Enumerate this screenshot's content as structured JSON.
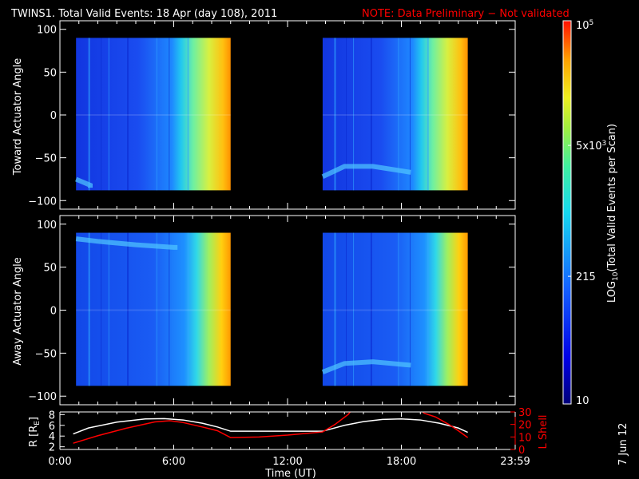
{
  "title": {
    "main": "TWINS1. Total Valid Events: 18 Apr (day 108), 2011",
    "note": "NOTE: Data Preliminary − Not validated"
  },
  "date_stamp": "7 Jun 12",
  "colors": {
    "background": "#000000",
    "foreground": "#ffffff",
    "note": "#ff0000",
    "r_line": "#ffffff",
    "lshell_line": "#ff0000"
  },
  "chart_data": [
    {
      "type": "heatmap",
      "panel": "top",
      "ylabel": "Toward Actuator Angle",
      "ylim": [
        -110,
        110
      ],
      "yticks": [
        "100",
        "50",
        "0",
        "−50",
        "−100"
      ],
      "ytick_values": [
        100,
        50,
        0,
        -50,
        -100
      ],
      "xlim_hours": [
        0,
        24
      ],
      "data_blocks": [
        {
          "start_hour": 0.85,
          "end_hour": 9.0,
          "angle_range": [
            -88,
            90
          ]
        },
        {
          "start_hour": 13.85,
          "end_hour": 21.5,
          "angle_range": [
            -88,
            90
          ]
        }
      ],
      "feature_line": {
        "segments": [
          [
            [
              0.85,
              -75
            ],
            [
              1.6,
              -82
            ],
            [
              1.6,
              -85
            ]
          ],
          [
            [
              13.85,
              -72
            ],
            [
              15.0,
              -60
            ],
            [
              16.5,
              -60
            ],
            [
              18.5,
              -67
            ]
          ]
        ]
      }
    },
    {
      "type": "heatmap",
      "panel": "middle",
      "ylabel": "Away Actuator Angle",
      "ylim": [
        -110,
        110
      ],
      "yticks": [
        "100",
        "50",
        "0",
        "−50",
        "−100"
      ],
      "ytick_values": [
        100,
        50,
        0,
        -50,
        -100
      ],
      "xlim_hours": [
        0,
        24
      ],
      "data_blocks": [
        {
          "start_hour": 0.85,
          "end_hour": 9.0,
          "angle_range": [
            -88,
            90
          ]
        },
        {
          "start_hour": 13.85,
          "end_hour": 21.5,
          "angle_range": [
            -88,
            90
          ]
        }
      ],
      "feature_line": {
        "segments": [
          [
            [
              0.85,
              83
            ],
            [
              2.0,
              80
            ],
            [
              4.0,
              76
            ],
            [
              6.0,
              73
            ],
            [
              6.2,
              73
            ]
          ],
          [
            [
              13.85,
              -72
            ],
            [
              15.0,
              -62
            ],
            [
              16.5,
              -60
            ],
            [
              18.5,
              -64
            ]
          ]
        ]
      }
    },
    {
      "type": "line",
      "panel": "bottom",
      "xlabel": "Time (UT)",
      "xticks": [
        "0:00",
        "6:00",
        "12:00",
        "18:00",
        "23:59"
      ],
      "xtick_values": [
        0,
        6,
        12,
        18,
        24
      ],
      "ylabel_left": "R [R",
      "ylabel_left_sub": "E",
      "ylabel_left_close": "]",
      "ylabel_right": "L Shell",
      "ylim_left": [
        1.5,
        8.5
      ],
      "yticks_left": [
        "8",
        "6",
        "4",
        "2"
      ],
      "ytick_values_left": [
        8,
        6,
        4,
        2
      ],
      "ylim_right": [
        0,
        30
      ],
      "yticks_right": [
        "30",
        "20",
        "10",
        "0"
      ],
      "ytick_values_right": [
        30,
        20,
        10,
        0
      ],
      "series": [
        {
          "axis": "left",
          "x": [
            0.7,
            1.5,
            3.0,
            4.5,
            5.5,
            6.5,
            7.5,
            8.3,
            9.0,
            10.0,
            11.0,
            12.0,
            13.0,
            13.85,
            15.0,
            16.0,
            17.0,
            18.0,
            19.0,
            20.0,
            21.0,
            21.5
          ],
          "y": [
            4.4,
            5.5,
            6.6,
            7.2,
            7.25,
            7.0,
            6.4,
            5.7,
            4.9,
            4.9,
            4.9,
            4.9,
            4.9,
            4.9,
            6.0,
            6.7,
            7.1,
            7.2,
            7.0,
            6.4,
            5.5,
            4.7
          ]
        },
        {
          "axis": "right",
          "segments": [
            {
              "x": [
                0.7,
                2.0,
                3.5,
                5.0,
                5.8,
                6.5,
                7.5,
                8.3,
                9.0,
                10.5,
                12.0,
                13.85,
                14.5,
                15.2,
                15.4
              ],
              "y": [
                5.0,
                11.0,
                17.0,
                22.0,
                23.0,
                21.5,
                18.0,
                15.0,
                9.5,
                10.0,
                11.5,
                14.0,
                20.0,
                28.0,
                32.0
              ]
            },
            {
              "x": [
                19.0,
                19.2,
                19.8,
                20.5,
                21.0,
                21.5
              ],
              "y": [
                32.0,
                29.0,
                26.0,
                20.0,
                15.0,
                9.5
              ]
            }
          ]
        }
      ]
    },
    {
      "type": "colorbar",
      "label_main": "LOG",
      "label_sub": "10",
      "label_rest": "(Total Valid Events per Scan)",
      "scale": "log",
      "range": [
        10,
        100000
      ],
      "ticks": [
        {
          "value": 100000,
          "base": "10",
          "exp": "5"
        },
        {
          "value": 5000,
          "base": "5x10",
          "exp": "3"
        },
        {
          "value": 215,
          "base": "215",
          "exp": ""
        },
        {
          "value": 10,
          "base": "10",
          "exp": ""
        }
      ]
    }
  ]
}
